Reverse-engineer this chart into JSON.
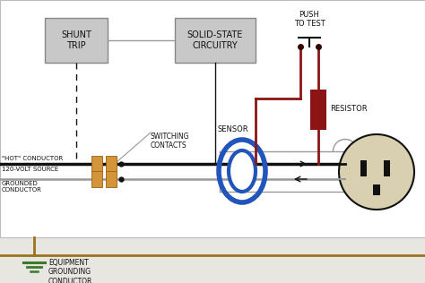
{
  "bg_color": "#e8e6e0",
  "white_bg": "#ffffff",
  "line_black": "#111111",
  "line_red": "#8B1515",
  "line_gray": "#999999",
  "line_brown": "#9B7320",
  "line_green": "#3a7a2a",
  "box_fill": "#c8c8c8",
  "box_stroke": "#888888",
  "contact_fill": "#d4943a",
  "contact_stroke": "#9B6010",
  "resistor_fill": "#8B1515",
  "sensor_color": "#2255bb",
  "outlet_fill": "#d8d0b0",
  "shunt_label": "SHUNT\nTRIP",
  "solid_state_label": "SOLID-STATE\nCIRCUITRY",
  "push_to_test_label": "PUSH\nTO TEST",
  "switching_contacts_label": "SWITCHING\nCONTACTS",
  "sensor_label": "SENSOR",
  "resistor_label": "RESISTOR",
  "hot_conductor_label": "\"HOT\" CONDUCTOR",
  "source_label": "120-VOLT SOURCE",
  "grounded_label": "GROUNDED\nCONDUCTOR",
  "equip_ground_label": "EQUIPMENT\nGROUNDING\nCONDUCTOR"
}
